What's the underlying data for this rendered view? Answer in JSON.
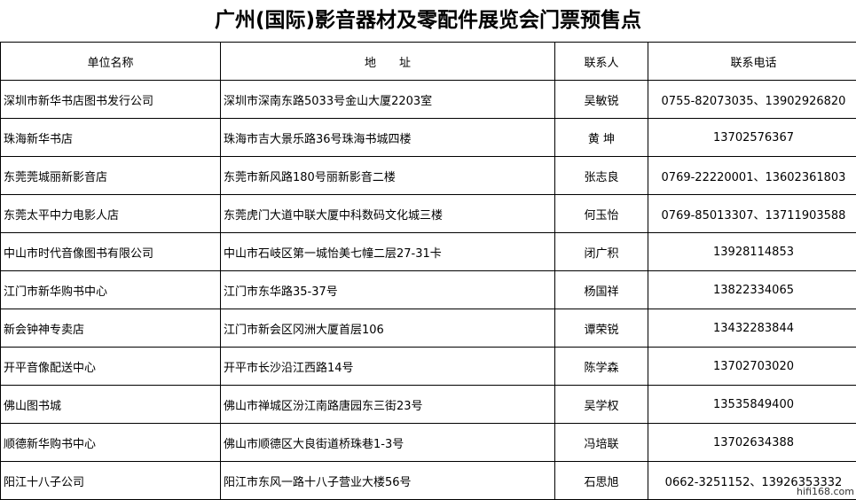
{
  "title": "广州(国际)影音器材及零配件展览会门票预售点",
  "headers": [
    "单位名称",
    "地　　址",
    "联系人",
    "联系电话"
  ],
  "rows": [
    {
      "name": "深圳市新华书店图书发行公司",
      "address": "深圳市深南东路5033号金山大厦2203室",
      "contact": "吴敏锐",
      "phone": "0755-82073035、13902926820"
    },
    {
      "name": "珠海新华书店",
      "address": "珠海市吉大景乐路36号珠海书城四楼",
      "contact": "黄 坤",
      "phone": "13702576367"
    },
    {
      "name": "东莞莞城丽新影音店",
      "address": "东莞市新风路180号丽新影音二楼",
      "contact": "张志良",
      "phone": "0769-22220001、13602361803"
    },
    {
      "name": "东莞太平中力电影人店",
      "address": "东莞虎门大道中联大厦中科数码文化城三楼",
      "contact": "何玉怡",
      "phone": "0769-85013307、13711903588"
    },
    {
      "name": "中山市时代音像图书有限公司",
      "address": "中山市石岐区第一城怡美七幢二层27-31卡",
      "contact": "闭广积",
      "phone": "13928114853"
    },
    {
      "name": "江门市新华购书中心",
      "address": "江门市东华路35-37号",
      "contact": "杨国祥",
      "phone": "13822334065"
    },
    {
      "name": "新会钟神专卖店",
      "address": "江门市新会区冈洲大厦首层106",
      "contact": "谭荣锐",
      "phone": "13432283844"
    },
    {
      "name": "开平音像配送中心",
      "address": "开平市长沙沿江西路14号",
      "contact": "陈学森",
      "phone": "13702703020"
    },
    {
      "name": "佛山图书城",
      "address": "佛山市禅城区汾江南路唐园东三街23号",
      "contact": "吴学权",
      "phone": "13535849400"
    },
    {
      "name": "顺德新华购书中心",
      "address": "佛山市顺德区大良街道桥珠巷1-3号",
      "contact": "冯培联",
      "phone": "13702634388"
    },
    {
      "name": "阳江十八子公司",
      "address": "阳江市东风一路十八子营业大楼56号",
      "contact": "石思旭",
      "phone": "0662-3251152、13926353332"
    }
  ],
  "watermark": "hifi168.com"
}
